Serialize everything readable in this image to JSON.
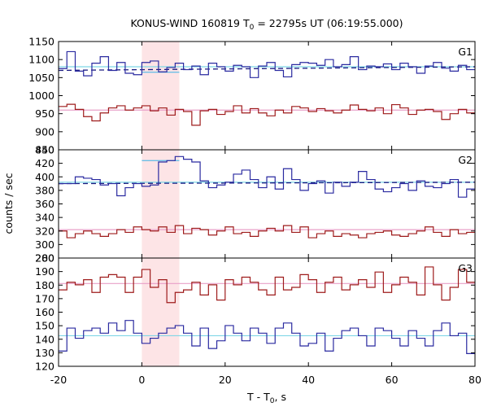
{
  "chart_data": {
    "type": "line",
    "title": "KONUS-WIND 160819 T",
    "title_sub": "0",
    "title_rest": " = 22795s UT (06:19:55.000)",
    "xlabel": "T - T",
    "xlabel_sub": "0",
    "xlabel_rest": ", s",
    "ylabel": "counts / sec",
    "xlim": [
      -20,
      80
    ],
    "xticks": [
      "-20",
      "0",
      "20",
      "40",
      "60",
      "80"
    ],
    "highlight": {
      "x0": 0,
      "x1": 9
    },
    "panels": [
      {
        "name": "G1",
        "ylim": [
          850,
          1150
        ],
        "yticks": [
          "850",
          "900",
          "950",
          "1000",
          "1050",
          "1100",
          "1150"
        ],
        "series": [
          {
            "color": "#2a2aa0",
            "values": [
              1075,
              1122,
              1068,
              1055,
              1090,
              1108,
              1070,
              1092,
              1062,
              1058,
              1092,
              1096,
              1066,
              1078,
              1090,
              1072,
              1082,
              1058,
              1090,
              1080,
              1068,
              1084,
              1080,
              1050,
              1082,
              1092,
              1070,
              1052,
              1086,
              1092,
              1090,
              1084,
              1100,
              1080,
              1086,
              1108,
              1072,
              1082,
              1080,
              1088,
              1072,
              1090,
              1080,
              1062,
              1082,
              1092,
              1076,
              1068,
              1084,
              1072
            ]
          },
          {
            "color": "#9e1b1b",
            "values": [
              970,
              976,
              962,
              942,
              930,
              952,
              966,
              972,
              960,
              966,
              972,
              958,
              966,
              946,
              962,
              956,
              918,
              958,
              962,
              948,
              956,
              972,
              952,
              964,
              952,
              944,
              960,
              952,
              970,
              966,
              956,
              964,
              958,
              952,
              960,
              974,
              962,
              958,
              966,
              950,
              975,
              966,
              948,
              960,
              962,
              956,
              934,
              950,
              962,
              952
            ]
          }
        ],
        "fits": [
          {
            "color": "#7fd6e6",
            "y0": 1080,
            "y1": 1080
          },
          {
            "color": "#1a1a80",
            "dashed": true,
            "y0": 1070,
            "y1": 1080
          },
          {
            "color": "#e8a0c8",
            "y0": 960,
            "y1": 960
          }
        ],
        "overlay": {
          "color": "#6cbfe6",
          "x0": 0,
          "x1": 9,
          "value": 1065
        }
      },
      {
        "name": "G2",
        "ylim": [
          280,
          440
        ],
        "yticks": [
          "280",
          "300",
          "320",
          "340",
          "360",
          "380",
          "400",
          "420",
          "440"
        ],
        "series": [
          {
            "color": "#2a2aa0",
            "values": [
              390,
              390,
              400,
              398,
              396,
              388,
              390,
              372,
              384,
              390,
              386,
              388,
              422,
              424,
              430,
              426,
              422,
              394,
              384,
              388,
              392,
              404,
              410,
              396,
              384,
              400,
              382,
              412,
              396,
              380,
              390,
              394,
              376,
              392,
              386,
              392,
              408,
              396,
              382,
              378,
              384,
              390,
              380,
              394,
              386,
              384,
              390,
              396,
              370,
              382
            ]
          },
          {
            "color": "#9e1b1b",
            "values": [
              320,
              310,
              316,
              320,
              316,
              312,
              316,
              322,
              318,
              326,
              322,
              320,
              326,
              318,
              328,
              316,
              324,
              322,
              314,
              320,
              326,
              316,
              318,
              312,
              320,
              324,
              320,
              328,
              318,
              326,
              310,
              316,
              320,
              312,
              316,
              314,
              310,
              316,
              318,
              320,
              314,
              312,
              316,
              320,
              326,
              318,
              312,
              322,
              316,
              318
            ]
          }
        ],
        "fits": [
          {
            "color": "#7fd6e6",
            "y0": 392,
            "y1": 392
          },
          {
            "color": "#1a1a80",
            "dashed": true,
            "y0": 390,
            "y1": 392
          },
          {
            "color": "#e8a0c8",
            "y0": 322,
            "y1": 322
          }
        ],
        "overlay": {
          "color": "#6cbfe6",
          "x0": 0,
          "x1": 9,
          "value": 424
        }
      },
      {
        "name": "G3",
        "ylim": [
          120,
          205
        ],
        "yticks": [
          "120",
          "130",
          "140",
          "150",
          "160",
          "170",
          "180",
          "190",
          "200"
        ],
        "series": [
          {
            "color": "#9e1b1b",
            "values": [
              180,
              186,
              184,
              188,
              178,
              190,
              192,
              190,
              178,
              190,
              196,
              182,
              188,
              170,
              178,
              180,
              186,
              176,
              184,
              172,
              188,
              184,
              190,
              186,
              180,
              176,
              190,
              180,
              182,
              192,
              188,
              178,
              186,
              190,
              180,
              184,
              188,
              182,
              194,
              178,
              184,
              190,
              186,
              176,
              198,
              184,
              172,
              182,
              196,
              186
            ]
          },
          {
            "color": "#2a2aa0",
            "values": [
              132,
              150,
              142,
              148,
              150,
              146,
              154,
              148,
              156,
              146,
              138,
              142,
              146,
              150,
              152,
              146,
              136,
              150,
              134,
              140,
              152,
              146,
              140,
              150,
              146,
              138,
              150,
              154,
              146,
              136,
              138,
              146,
              132,
              142,
              148,
              150,
              144,
              136,
              150,
              148,
              142,
              136,
              148,
              142,
              136,
              148,
              154,
              144,
              146,
              130
            ]
          }
        ],
        "fits": [
          {
            "color": "#e8a0c8",
            "y0": 185,
            "y1": 185
          },
          {
            "color": "#7fd6e6",
            "y0": 144,
            "y1": 144
          }
        ]
      }
    ]
  }
}
